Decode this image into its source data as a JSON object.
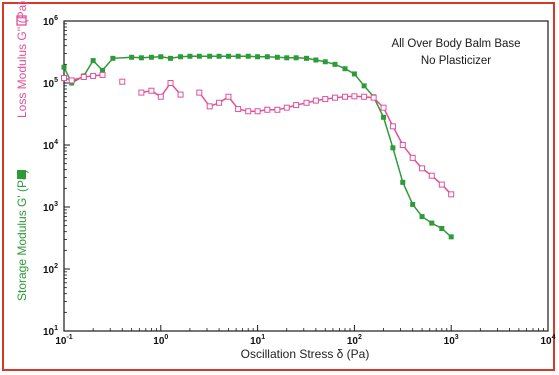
{
  "chart_data": {
    "type": "line",
    "xscale": "log",
    "yscale": "log",
    "xlim": [
      0.1,
      10000
    ],
    "ylim": [
      10,
      1000000
    ],
    "xlabel": "Oscillation Stress δ (Pa)",
    "ylabel_storage": "Storage Modulus G' (Pa)",
    "ylabel_loss": "Loss Modulus G'' (Pa)",
    "annotation_lines": [
      "All Over Body Balm Base",
      "No Plasticizer"
    ],
    "x_ticks": [
      {
        "value": 0.1,
        "base": "10",
        "exp": "-1"
      },
      {
        "value": 1,
        "base": "10",
        "exp": "0"
      },
      {
        "value": 10,
        "base": "10",
        "exp": "1"
      },
      {
        "value": 100,
        "base": "10",
        "exp": "2"
      },
      {
        "value": 1000,
        "base": "10",
        "exp": "3"
      },
      {
        "value": 10000,
        "base": "10",
        "exp": "4"
      }
    ],
    "y_ticks": [
      {
        "value": 10,
        "base": "10",
        "exp": "1"
      },
      {
        "value": 100,
        "base": "10",
        "exp": "2"
      },
      {
        "value": 1000,
        "base": "10",
        "exp": "3"
      },
      {
        "value": 10000,
        "base": "10",
        "exp": "4"
      },
      {
        "value": 100000,
        "base": "10",
        "exp": "5"
      },
      {
        "value": 1000000,
        "base": "10",
        "exp": "6"
      }
    ],
    "grid": false,
    "series": [
      {
        "name": "Storage Modulus G'",
        "color": "#2e9a3a",
        "marker": "filled-square",
        "points": [
          [
            0.1,
            180000
          ],
          [
            0.12,
            100000
          ],
          [
            0.16,
            130000
          ],
          [
            0.2,
            230000
          ],
          [
            0.25,
            160000
          ],
          [
            0.32,
            250000
          ],
          [
            0.5,
            260000
          ],
          [
            0.63,
            255000
          ],
          [
            0.8,
            260000
          ],
          [
            1.0,
            265000
          ],
          [
            1.26,
            250000
          ],
          [
            1.6,
            265000
          ],
          [
            2.0,
            270000
          ],
          [
            2.5,
            270000
          ],
          [
            3.2,
            270000
          ],
          [
            4.0,
            270000
          ],
          [
            5.0,
            270000
          ],
          [
            6.3,
            270000
          ],
          [
            8.0,
            270000
          ],
          [
            10,
            265000
          ],
          [
            12.6,
            265000
          ],
          [
            16,
            260000
          ],
          [
            20,
            255000
          ],
          [
            25,
            255000
          ],
          [
            32,
            250000
          ],
          [
            40,
            235000
          ],
          [
            50,
            220000
          ],
          [
            63,
            200000
          ],
          [
            80,
            170000
          ],
          [
            100,
            140000
          ],
          [
            126,
            90000
          ],
          [
            158,
            60000
          ],
          [
            200,
            28000
          ],
          [
            250,
            9000
          ],
          [
            316,
            2500
          ],
          [
            400,
            1100
          ],
          [
            500,
            700
          ],
          [
            630,
            550
          ],
          [
            800,
            450
          ],
          [
            1000,
            330
          ]
        ]
      },
      {
        "name": "Loss Modulus G''",
        "color": "#e0509b",
        "marker": "open-square",
        "segments": [
          [
            [
              0.1,
              120000
            ],
            [
              0.12,
              110000
            ],
            [
              0.16,
              125000
            ],
            [
              0.2,
              130000
            ],
            [
              0.25,
              135000
            ]
          ],
          [
            [
              0.4,
              105000
            ]
          ],
          [
            [
              0.63,
              70000
            ],
            [
              0.8,
              75000
            ],
            [
              1.0,
              60000
            ],
            [
              1.26,
              100000
            ],
            [
              1.6,
              65000
            ]
          ],
          [
            [
              2.5,
              70000
            ],
            [
              3.2,
              42000
            ],
            [
              4.0,
              48000
            ],
            [
              5.0,
              60000
            ],
            [
              6.3,
              38000
            ],
            [
              8.0,
              35000
            ],
            [
              10,
              35000
            ],
            [
              12.6,
              37000
            ],
            [
              16,
              37000
            ],
            [
              20,
              40000
            ],
            [
              25,
              44000
            ],
            [
              32,
              48000
            ],
            [
              40,
              52000
            ],
            [
              50,
              55000
            ],
            [
              63,
              58000
            ],
            [
              80,
              60000
            ],
            [
              100,
              61000
            ],
            [
              126,
              60000
            ],
            [
              158,
              58000
            ],
            [
              200,
              40000
            ],
            [
              250,
              20000
            ],
            [
              316,
              10000
            ],
            [
              400,
              6200
            ],
            [
              500,
              4200
            ],
            [
              630,
              3200
            ],
            [
              800,
              2300
            ],
            [
              1000,
              1600
            ]
          ]
        ]
      }
    ]
  }
}
